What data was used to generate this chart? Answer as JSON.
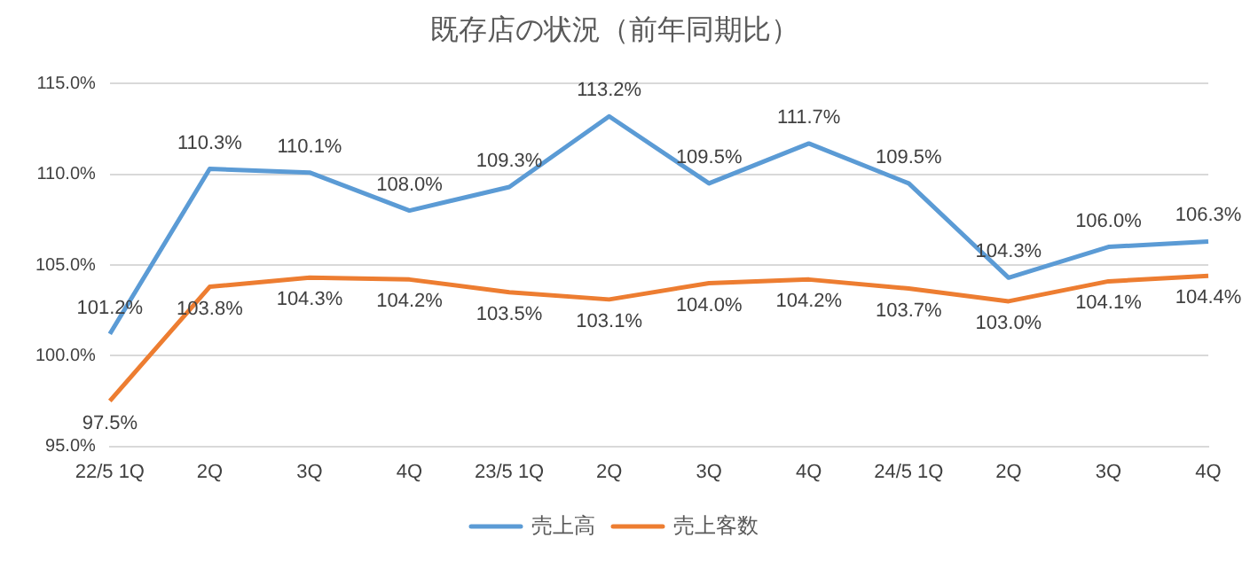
{
  "chart_data": {
    "type": "line",
    "title": "既存店の状況（前年同期比）",
    "categories": [
      "22/5 1Q",
      "2Q",
      "3Q",
      "4Q",
      "23/5 1Q",
      "2Q",
      "3Q",
      "4Q",
      "24/5 1Q",
      "2Q",
      "3Q",
      "4Q"
    ],
    "series": [
      {
        "name": "売上高",
        "color": "#5b9bd5",
        "values": [
          101.2,
          110.3,
          110.1,
          108.0,
          109.3,
          113.2,
          109.5,
          111.7,
          109.5,
          104.3,
          106.0,
          106.3
        ],
        "value_labels": [
          "101.2%",
          "110.3%",
          "110.1%",
          "108.0%",
          "109.3%",
          "113.2%",
          "109.5%",
          "111.7%",
          "109.5%",
          "104.3%",
          "106.0%",
          "106.3%"
        ]
      },
      {
        "name": "売上客数",
        "color": "#ed7d31",
        "values": [
          97.5,
          103.8,
          104.3,
          104.2,
          103.5,
          103.1,
          104.0,
          104.2,
          103.7,
          103.0,
          104.1,
          104.4
        ],
        "value_labels": [
          "97.5%",
          "103.8%",
          "104.3%",
          "104.2%",
          "103.5%",
          "103.1%",
          "104.0%",
          "104.2%",
          "103.7%",
          "103.0%",
          "104.1%",
          "104.4%"
        ]
      }
    ],
    "ylim": [
      95,
      115
    ],
    "yticks": [
      {
        "value": 95,
        "label": "95.0%"
      },
      {
        "value": 100,
        "label": "100.0%"
      },
      {
        "value": 105,
        "label": "105.0%"
      },
      {
        "value": 110,
        "label": "110.0%"
      },
      {
        "value": 115,
        "label": "115.0%"
      }
    ],
    "grid": "y",
    "legend": "bottom",
    "marker": "none",
    "line_style": "solid"
  }
}
